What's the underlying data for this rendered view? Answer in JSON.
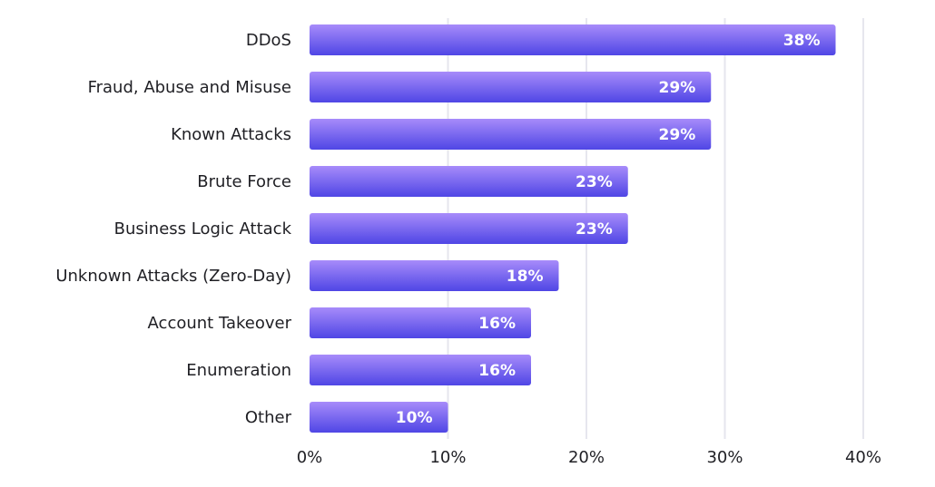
{
  "chart_data": {
    "type": "bar",
    "orientation": "horizontal",
    "categories": [
      "DDoS",
      "Fraud, Abuse and Misuse",
      "Known Attacks",
      "Brute Force",
      "Business Logic Attack",
      "Unknown Attacks (Zero-Day)",
      "Account Takeover",
      "Enumeration",
      "Other"
    ],
    "values": [
      38,
      29,
      29,
      23,
      23,
      18,
      16,
      16,
      10
    ],
    "value_labels": [
      "38%",
      "29%",
      "29%",
      "23%",
      "23%",
      "18%",
      "16%",
      "16%",
      "10%"
    ],
    "xlim": [
      0,
      40
    ],
    "x_ticks": [
      0,
      10,
      20,
      30,
      40
    ],
    "x_tick_labels": [
      "0%",
      "10%",
      "20%",
      "30%",
      "40%"
    ],
    "title": "",
    "xlabel": "",
    "ylabel": "",
    "grid": true,
    "legend": "none",
    "colors": {
      "bar_top": "#a78bfa",
      "bar_bottom": "#4f46e5",
      "gridline": "#e6e6ee",
      "text": "#1f1f24",
      "value_text": "#ffffff"
    }
  }
}
